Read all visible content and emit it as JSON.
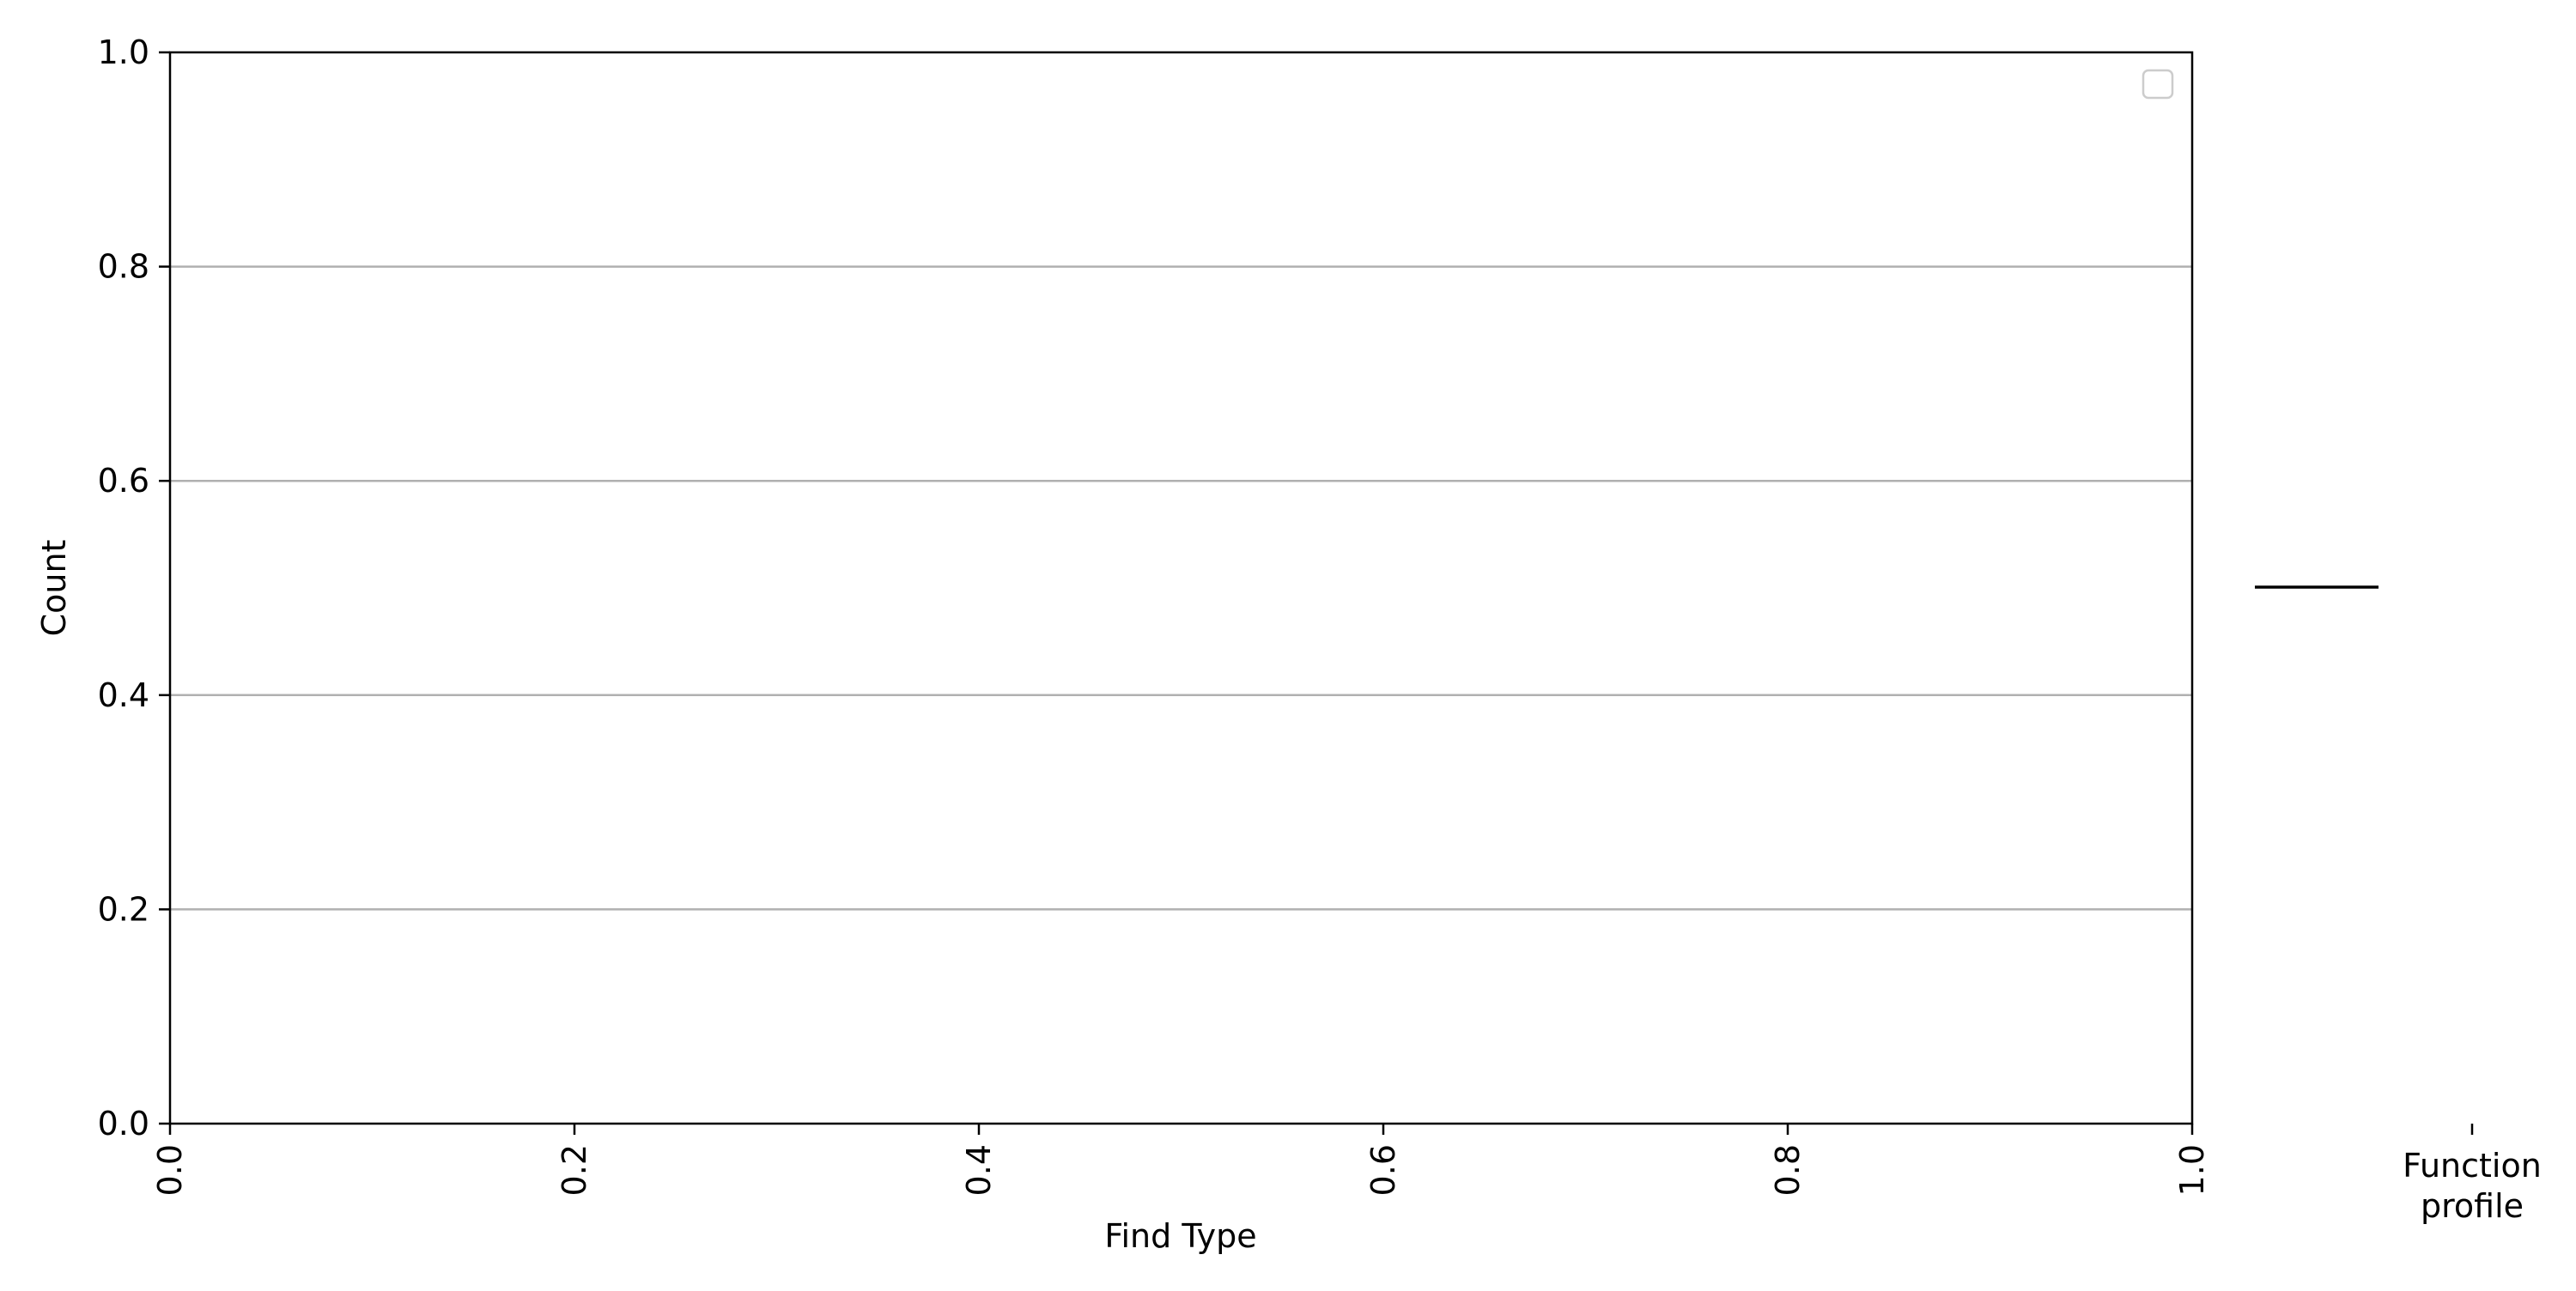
{
  "chart_data": {
    "type": "bar",
    "xlabel": "Find Type",
    "ylabel": "Count",
    "xlim": [
      0.0,
      1.0
    ],
    "ylim": [
      0.0,
      1.0
    ],
    "x_ticks": [
      "0.0",
      "0.2",
      "0.4",
      "0.6",
      "0.8",
      "1.0"
    ],
    "y_ticks": [
      "0.0",
      "0.2",
      "0.4",
      "0.6",
      "0.8",
      "1.0"
    ],
    "grid": "y",
    "legend_position": "top-right",
    "legend_entries": [],
    "series": [],
    "side_panel": {
      "tick_label_line1": "Function",
      "tick_label_line2": "profile",
      "values": []
    }
  }
}
